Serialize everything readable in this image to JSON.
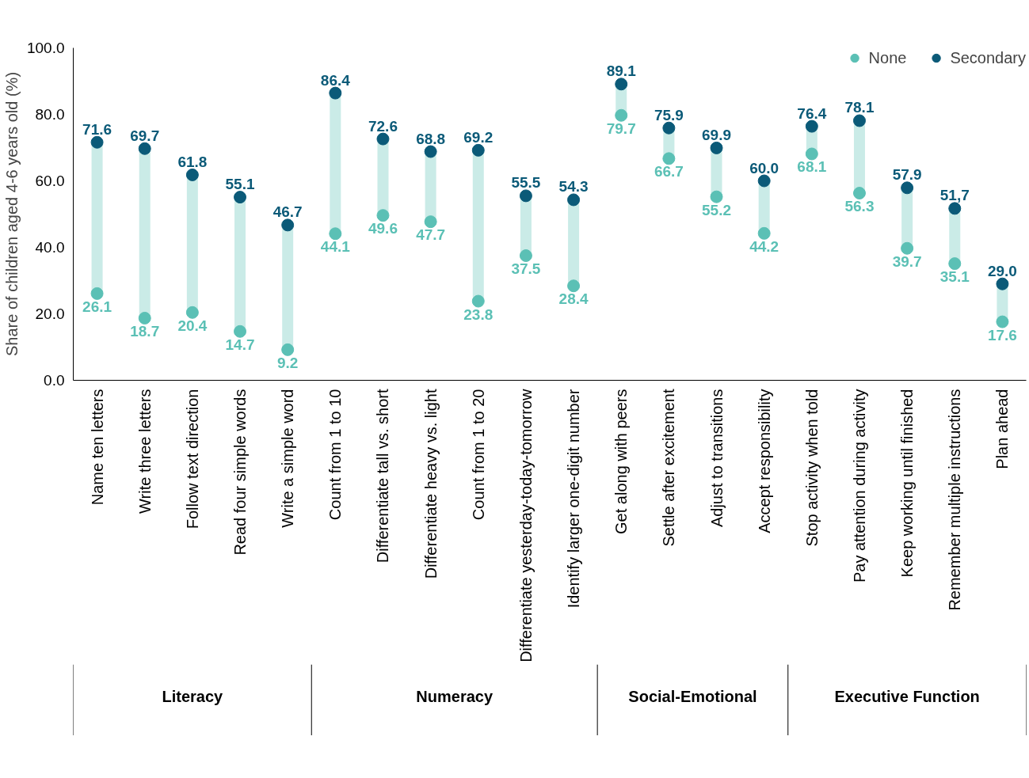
{
  "chart_data": {
    "type": "scatter",
    "ylabel": "Share of children aged 4-6 years old (%)",
    "categories": [
      "Name ten letters",
      "Write three letters",
      "Follow text direction",
      "Read four simple words",
      "Write a simple word",
      "Count from 1 to 10",
      "Differentiate tall vs. short",
      "Differentiate heavy vs. light",
      "Count from 1 to 20",
      "Differentiate yesterday-today-tomorrow",
      "Identify larger one-digit number",
      "Get along with peers",
      "Settle after excitement",
      "Adjust to transitions",
      "Accept responsibility",
      "Stop activity when told",
      "Pay attention during activity",
      "Keep working until finished",
      "Remember multiple instructions",
      "Plan ahead"
    ],
    "series": [
      {
        "name": "None",
        "color": "#5bc0b5",
        "values": [
          26.1,
          18.7,
          20.4,
          14.7,
          9.2,
          44.1,
          49.6,
          47.7,
          23.8,
          37.5,
          28.4,
          79.7,
          66.7,
          55.2,
          44.2,
          68.1,
          56.3,
          39.7,
          35.1,
          17.6
        ],
        "value_labels": [
          "26.1",
          "18.7",
          "20.4",
          "14.7",
          "9.2",
          "44.1",
          "49.6",
          "47.7",
          "23.8",
          "37.5",
          "28.4",
          "79.7",
          "66.7",
          "55.2",
          "44.2",
          "68.1",
          "56.3",
          "39.7",
          "35.1",
          "17.6"
        ]
      },
      {
        "name": "Secondary",
        "color": "#0b5a78",
        "values": [
          71.6,
          69.7,
          61.8,
          55.1,
          46.7,
          86.4,
          72.6,
          68.8,
          69.2,
          55.5,
          54.3,
          89.1,
          75.9,
          69.9,
          60.0,
          76.4,
          78.1,
          57.9,
          51.7,
          29.0
        ],
        "value_labels": [
          "71.6",
          "69.7",
          "61.8",
          "55.1",
          "46.7",
          "86.4",
          "72.6",
          "68.8",
          "69.2",
          "55.5",
          "54.3",
          "89.1",
          "75.9",
          "69.9",
          "60.0",
          "76.4",
          "78.1",
          "57.9",
          "51,7",
          "29.0"
        ]
      }
    ],
    "annotations": [
      "Literacy",
      "Numeracy",
      "Social-Emotional",
      "Executive Function"
    ],
    "ylim": [
      0,
      100
    ],
    "yticks": [
      {
        "value": 0,
        "label": "0.0"
      },
      {
        "value": 20,
        "label": "20.0"
      },
      {
        "value": 40,
        "label": "40.0"
      },
      {
        "value": 60,
        "label": "60.0"
      },
      {
        "value": 80,
        "label": "80.0"
      },
      {
        "value": 100,
        "label": "100.0"
      }
    ],
    "grid": false,
    "legend": "top right",
    "marker": "circle"
  }
}
